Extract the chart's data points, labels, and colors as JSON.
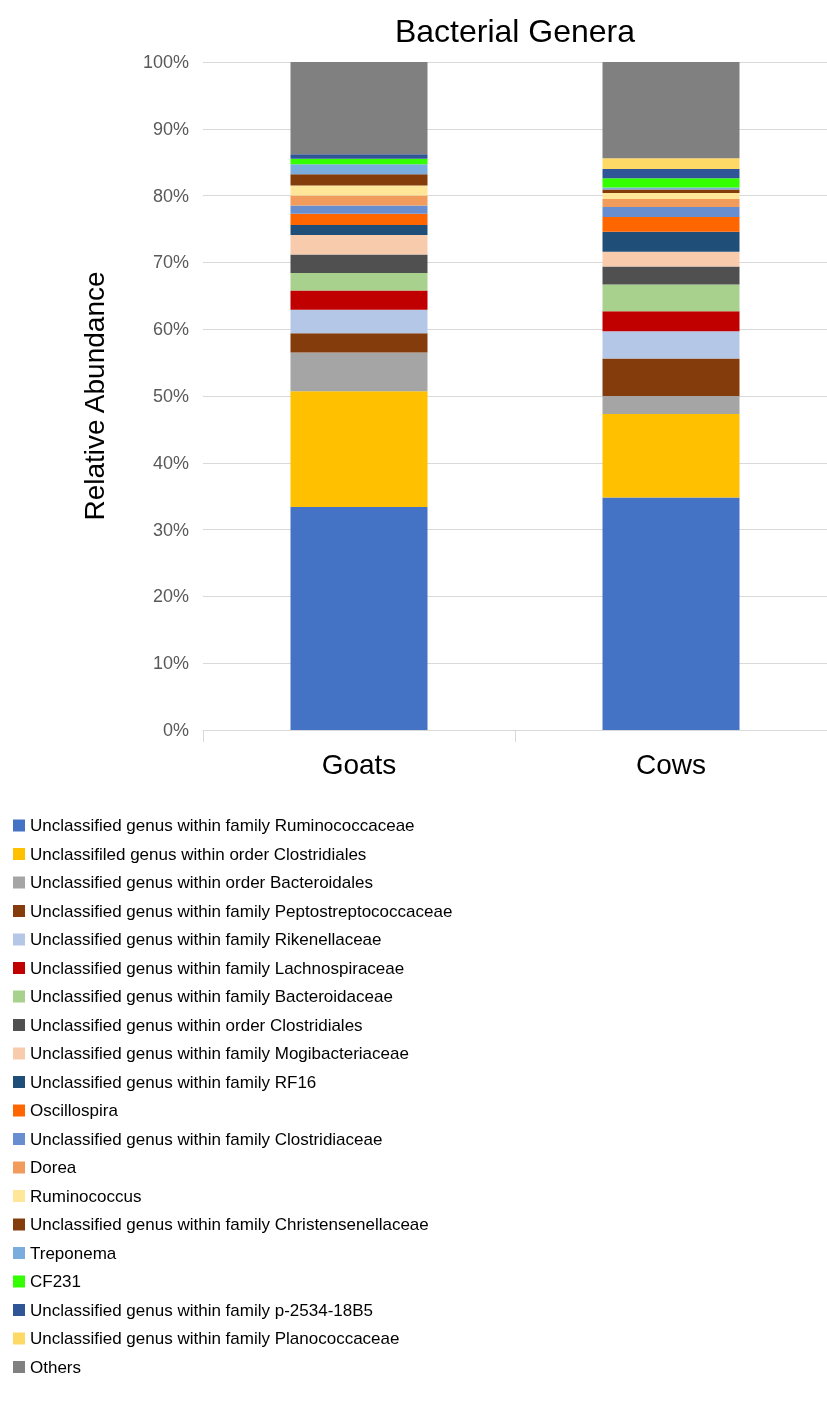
{
  "chart_data": {
    "type": "bar",
    "stacked": true,
    "title": "Bacterial Genera",
    "ylabel": "Relative Abundance",
    "categories": [
      "Goats",
      "Cows"
    ],
    "ylim": [
      0,
      100
    ],
    "yticks": [
      {
        "value": 0,
        "label": "0%"
      },
      {
        "value": 10,
        "label": "10%"
      },
      {
        "value": 20,
        "label": "20%"
      },
      {
        "value": 30,
        "label": "30%"
      },
      {
        "value": 40,
        "label": "40%"
      },
      {
        "value": 50,
        "label": "50%"
      },
      {
        "value": 60,
        "label": "60%"
      },
      {
        "value": 70,
        "label": "70%"
      },
      {
        "value": 80,
        "label": "80%"
      },
      {
        "value": 90,
        "label": "90%"
      },
      {
        "value": 100,
        "label": "100%"
      }
    ],
    "grid": "y",
    "legend": "bottom",
    "series": [
      {
        "name": "Unclassified genus within family Ruminococcaceae",
        "color": "#4472c4",
        "values": [
          33.4,
          34.8
        ]
      },
      {
        "name": "Unclassifiled genus within order Clostridiales",
        "color": "#ffc000",
        "values": [
          17.3,
          12.5
        ]
      },
      {
        "name": "Unclassified genus within order Bacteroidales",
        "color": "#a5a5a5",
        "values": [
          5.8,
          2.7
        ]
      },
      {
        "name": "Unclassified genus within family Peptostreptococcaceae",
        "color": "#843c0c",
        "values": [
          2.9,
          5.6
        ]
      },
      {
        "name": "Unclassified genus within family Rikenellaceae",
        "color": "#b4c7e7",
        "values": [
          3.5,
          4.1
        ]
      },
      {
        "name": "Unclassified genus within family Lachnospiraceae",
        "color": "#c00000",
        "values": [
          2.9,
          3.0
        ]
      },
      {
        "name": "Unclassified genus within family Bacteroidaceae",
        "color": "#a9d18e",
        "values": [
          2.6,
          4.0
        ]
      },
      {
        "name": "Unclassified genus within order Clostridiales",
        "color": "#505050",
        "values": [
          2.8,
          2.7
        ]
      },
      {
        "name": "Unclassified genus within family Mogibacteriaceae",
        "color": "#f8cbad",
        "values": [
          2.9,
          2.2
        ]
      },
      {
        "name": "Unclassified genus within family RF16",
        "color": "#1f4e79",
        "values": [
          1.5,
          3.0
        ]
      },
      {
        "name": "Oscillospira",
        "color": "#ff6600",
        "values": [
          1.7,
          2.2
        ]
      },
      {
        "name": "Unclassified genus within family Clostridiaceae",
        "color": "#698ed0",
        "values": [
          1.2,
          1.5
        ]
      },
      {
        "name": "Dorea",
        "color": "#f19c5d",
        "values": [
          1.5,
          1.2
        ]
      },
      {
        "name": "Ruminococcus",
        "color": "#ffe699",
        "values": [
          1.5,
          0.9
        ]
      },
      {
        "name": "Unclassified genus within family Christensenellaceae",
        "color": "#843c0b",
        "values": [
          1.7,
          0.5
        ]
      },
      {
        "name": "Treponema",
        "color": "#7aaddd",
        "values": [
          1.5,
          0.3
        ]
      },
      {
        "name": "CF231",
        "color": "#33ff00",
        "values": [
          0.8,
          1.4
        ]
      },
      {
        "name": "Unclassified genus within family p-2534-18B5",
        "color": "#2f5597",
        "values": [
          0.7,
          1.4
        ]
      },
      {
        "name": "Unclassified genus within family Planococcaceae",
        "color": "#ffd966",
        "values": [
          0,
          1.6
        ]
      },
      {
        "name": "Others",
        "color": "#808080",
        "values": [
          13.8,
          14.4
        ]
      }
    ]
  }
}
